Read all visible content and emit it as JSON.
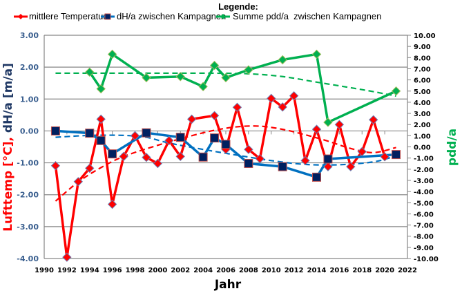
{
  "chart_data": {
    "type": "line",
    "title": "",
    "legend": {
      "title": "Legende:",
      "placement": "top",
      "entries": [
        {
          "label": "mittlere Temperatur",
          "color": "#ff0000",
          "marker": "diamond"
        },
        {
          "label": "dH/a zwischen Kampagnen",
          "color": "#0070c0",
          "marker": "square"
        },
        {
          "label": "Summe pdd/a  zwischen Kampagnen",
          "color": "#00b050",
          "marker": "diamond"
        }
      ]
    },
    "xlabel": "Jahr",
    "ylabel_left_parts": [
      {
        "text": "Lufttemp [°C],",
        "color": "#ff0000"
      },
      {
        "text": " dH/a [m/a]",
        "color": "#1f3864"
      }
    ],
    "ylabel_right": "pdd/a",
    "ylabel_right_color": "#00b050",
    "xlim": [
      1990,
      2022
    ],
    "ylim_left": [
      -4,
      3
    ],
    "ylim_right": [
      -10,
      10
    ],
    "grid": true,
    "x_ticks": [
      "1990",
      "1992",
      "1994",
      "1996",
      "1998",
      "2000",
      "2002",
      "2004",
      "2006",
      "2008",
      "2010",
      "2012",
      "2014",
      "2016",
      "2018",
      "2020",
      "2022"
    ],
    "y_ticks_left": [
      "3.00",
      "2.00",
      "1.00",
      "0.00",
      "-1.00",
      "-2.00",
      "-3.00",
      "-4.00"
    ],
    "y_ticks_right": [
      "10.00",
      "9.00",
      "8.00",
      "7.00",
      "6.00",
      "5.00",
      "4.00",
      "3.00",
      "2.00",
      "1.00",
      "0.00",
      "-1.00",
      "-2.00",
      "-3.00",
      "-4.00",
      "-5.00",
      "-6.00",
      "-7.00",
      "-8.00",
      "-9.00",
      "-10.00"
    ],
    "series": [
      {
        "name": "mittlere Temperatur",
        "axis": "left",
        "color": "#ff0000",
        "marker": "diamond",
        "x": [
          1991,
          1992,
          1993,
          1994,
          1995,
          1996,
          1997,
          1998,
          1999,
          2000,
          2001,
          2002,
          2003,
          2005,
          2006,
          2007,
          2008,
          2009,
          2010,
          2011,
          2012,
          2013,
          2014,
          2015,
          2016,
          2017,
          2018,
          2019,
          2020
        ],
        "y": [
          -1.09,
          -3.96,
          -1.59,
          -1.17,
          0.37,
          -2.3,
          -0.8,
          -0.15,
          -0.83,
          -1.02,
          -0.3,
          -0.8,
          0.37,
          0.48,
          -0.58,
          0.74,
          -0.58,
          -0.87,
          1.02,
          0.75,
          1.1,
          -0.93,
          0.05,
          -1.12,
          0.2,
          -1.12,
          -0.65,
          0.35,
          -0.81
        ]
      },
      {
        "name": "dH/a zwischen Kampagnen",
        "axis": "left",
        "color": "#0070c0",
        "marker": "square",
        "x": [
          1991,
          1994,
          1995,
          1996,
          1999,
          2002,
          2004,
          2005,
          2006,
          2008,
          2011,
          2014,
          2015,
          2021
        ],
        "y": [
          0.0,
          -0.07,
          -0.3,
          -0.72,
          -0.06,
          -0.2,
          -0.82,
          -0.22,
          -0.42,
          -1.02,
          -1.12,
          -1.45,
          -0.88,
          -0.74
        ]
      },
      {
        "name": "Summe pdd/a  zwischen Kampagnen",
        "axis": "right",
        "color": "#00b050",
        "marker": "diamond",
        "x": [
          1994,
          1995,
          1996,
          1999,
          2002,
          2004,
          2005,
          2006,
          2008,
          2011,
          2014,
          2015,
          2021
        ],
        "y": [
          6.7,
          5.2,
          8.3,
          6.2,
          6.3,
          5.4,
          7.3,
          6.2,
          6.9,
          7.8,
          8.3,
          2.2,
          5.0
        ]
      }
    ],
    "trendlines": [
      {
        "name": "Trend mittlere Temperatur",
        "axis": "left",
        "color": "#ff0000",
        "x": [
          1991,
          1993,
          1995,
          1997,
          2000,
          2003,
          2005,
          2007,
          2009,
          2011,
          2013,
          2015,
          2017,
          2019,
          2021
        ],
        "y": [
          -2.2,
          -1.6,
          -1.15,
          -0.8,
          -0.45,
          -0.15,
          0.02,
          0.13,
          0.15,
          0.05,
          -0.12,
          -0.32,
          -0.55,
          -0.68,
          -0.52
        ]
      },
      {
        "name": "Trend dH/a",
        "axis": "left",
        "color": "#0070c0",
        "x": [
          1991,
          1994,
          1997,
          1999,
          2001,
          2004,
          2007,
          2010,
          2013,
          2016,
          2019,
          2021
        ],
        "y": [
          -0.2,
          -0.14,
          -0.14,
          -0.2,
          -0.38,
          -0.58,
          -0.76,
          -0.93,
          -1.05,
          -1.06,
          -0.97,
          -0.78
        ]
      },
      {
        "name": "Trend pdd/a",
        "axis": "right",
        "color": "#00b050",
        "x": [
          1991,
          1995,
          2000,
          2005,
          2008,
          2011,
          2014,
          2017,
          2019,
          2021
        ],
        "y": [
          6.6,
          6.6,
          6.6,
          6.6,
          6.55,
          6.3,
          5.8,
          5.3,
          4.95,
          4.55
        ]
      }
    ]
  }
}
